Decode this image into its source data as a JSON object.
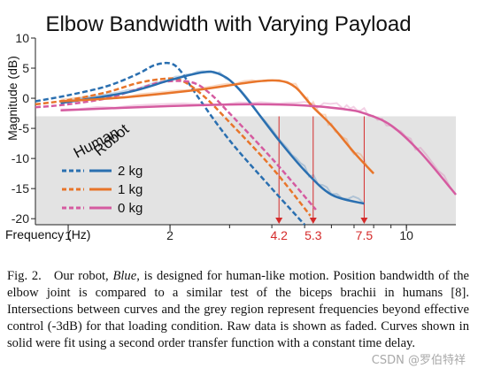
{
  "chart_data": {
    "type": "line",
    "title": "Elbow Bandwidth with Varying Payload",
    "xlabel": "Frequency (Hz)",
    "ylabel": "Magnitude (dB)",
    "xscale": "log",
    "xlim": [
      0.8,
      14
    ],
    "ylim": [
      -21,
      10
    ],
    "x_ticks": [
      1,
      2,
      10
    ],
    "x_tick_labels": [
      "1",
      "2",
      "10"
    ],
    "y_ticks": [
      10,
      5,
      0,
      -5,
      -10,
      -15,
      -20
    ],
    "y_tick_labels": [
      "10",
      "5",
      "0",
      "-5",
      "-10",
      "-15",
      "-20"
    ],
    "grey_region_below_db": -3,
    "grid": false,
    "legend": {
      "placement": "bottom-left",
      "header_left": "Human",
      "header_right": "Robot",
      "entries": [
        {
          "label": "2 kg",
          "color": "#2a6fb0"
        },
        {
          "label": "1 kg",
          "color": "#e8752a"
        },
        {
          "label": "0 kg",
          "color": "#d55ba0"
        }
      ]
    },
    "series": [
      {
        "name": "2 kg",
        "style": "dashed",
        "color": "#2a6fb0",
        "x": [
          0.8,
          1.0,
          1.3,
          1.6,
          1.8,
          2.0,
          2.15,
          2.4,
          3.0,
          4.0,
          5.0
        ],
        "y": [
          -0.5,
          0.5,
          2.0,
          4.0,
          5.5,
          5.8,
          4.5,
          0.5,
          -7.0,
          -15.0,
          -21.0
        ]
      },
      {
        "name": "1 kg",
        "style": "dashed",
        "color": "#e8752a",
        "x": [
          0.8,
          1.0,
          1.3,
          1.6,
          1.9,
          2.15,
          2.5,
          3.0,
          4.0,
          5.2
        ],
        "y": [
          -1.0,
          -0.3,
          1.0,
          2.5,
          3.2,
          3.0,
          0.5,
          -4.0,
          -11.5,
          -19.5
        ]
      },
      {
        "name": "0 kg",
        "style": "dashed",
        "color": "#d55ba0",
        "x": [
          0.8,
          1.0,
          1.3,
          1.6,
          1.9,
          2.3,
          2.6,
          3.0,
          4.0,
          5.4
        ],
        "y": [
          -1.5,
          -1.0,
          0.0,
          1.5,
          2.7,
          2.7,
          1.0,
          -2.5,
          -10.0,
          -18.5
        ]
      },
      {
        "name": "2 kg",
        "style": "solid",
        "color": "#2a6fb0",
        "x": [
          0.95,
          1.5,
          2.0,
          2.5,
          2.8,
          3.2,
          4.2,
          5.0,
          6.0,
          7.5
        ],
        "y": [
          -0.8,
          1.0,
          3.0,
          4.3,
          4.0,
          1.5,
          -7.0,
          -12.0,
          -16.0,
          -17.5
        ]
      },
      {
        "name": "1 kg",
        "style": "solid",
        "color": "#e8752a",
        "x": [
          0.95,
          1.5,
          2.5,
          3.5,
          4.2,
          4.7,
          5.3,
          6.0,
          7.0,
          8.0
        ],
        "y": [
          -0.5,
          0.2,
          1.5,
          2.7,
          2.9,
          1.8,
          -1.5,
          -4.5,
          -9.0,
          -12.5
        ]
      },
      {
        "name": "0 kg",
        "style": "solid",
        "color": "#d55ba0",
        "x": [
          0.95,
          2.0,
          3.5,
          5.0,
          6.5,
          7.5,
          9.0,
          11.0,
          14.0
        ],
        "y": [
          -2.0,
          -1.3,
          -1.0,
          -1.2,
          -1.8,
          -2.5,
          -4.5,
          -9.0,
          -16.0
        ]
      }
    ],
    "annotations": [
      {
        "x": 4.2,
        "label": "4.2"
      },
      {
        "x": 5.3,
        "label": "5.3"
      },
      {
        "x": 7.5,
        "label": "7.5"
      }
    ],
    "annotation_color": "#d42a2a"
  },
  "caption": {
    "label": "Fig. 2.",
    "emph": "Blue",
    "before": "Our robot, ",
    "after": ", is designed for human-like motion. Position bandwidth of the elbow joint is compared to a similar test of the biceps brachii in humans [8]. Intersections between curves and the grey region represent frequencies beyond effective control (-3dB) for that loading condition. Raw data is shown as faded. Curves shown in solid were fit using a second order transfer function with a constant time delay."
  },
  "watermark": "CSDN @罗伯特祥"
}
